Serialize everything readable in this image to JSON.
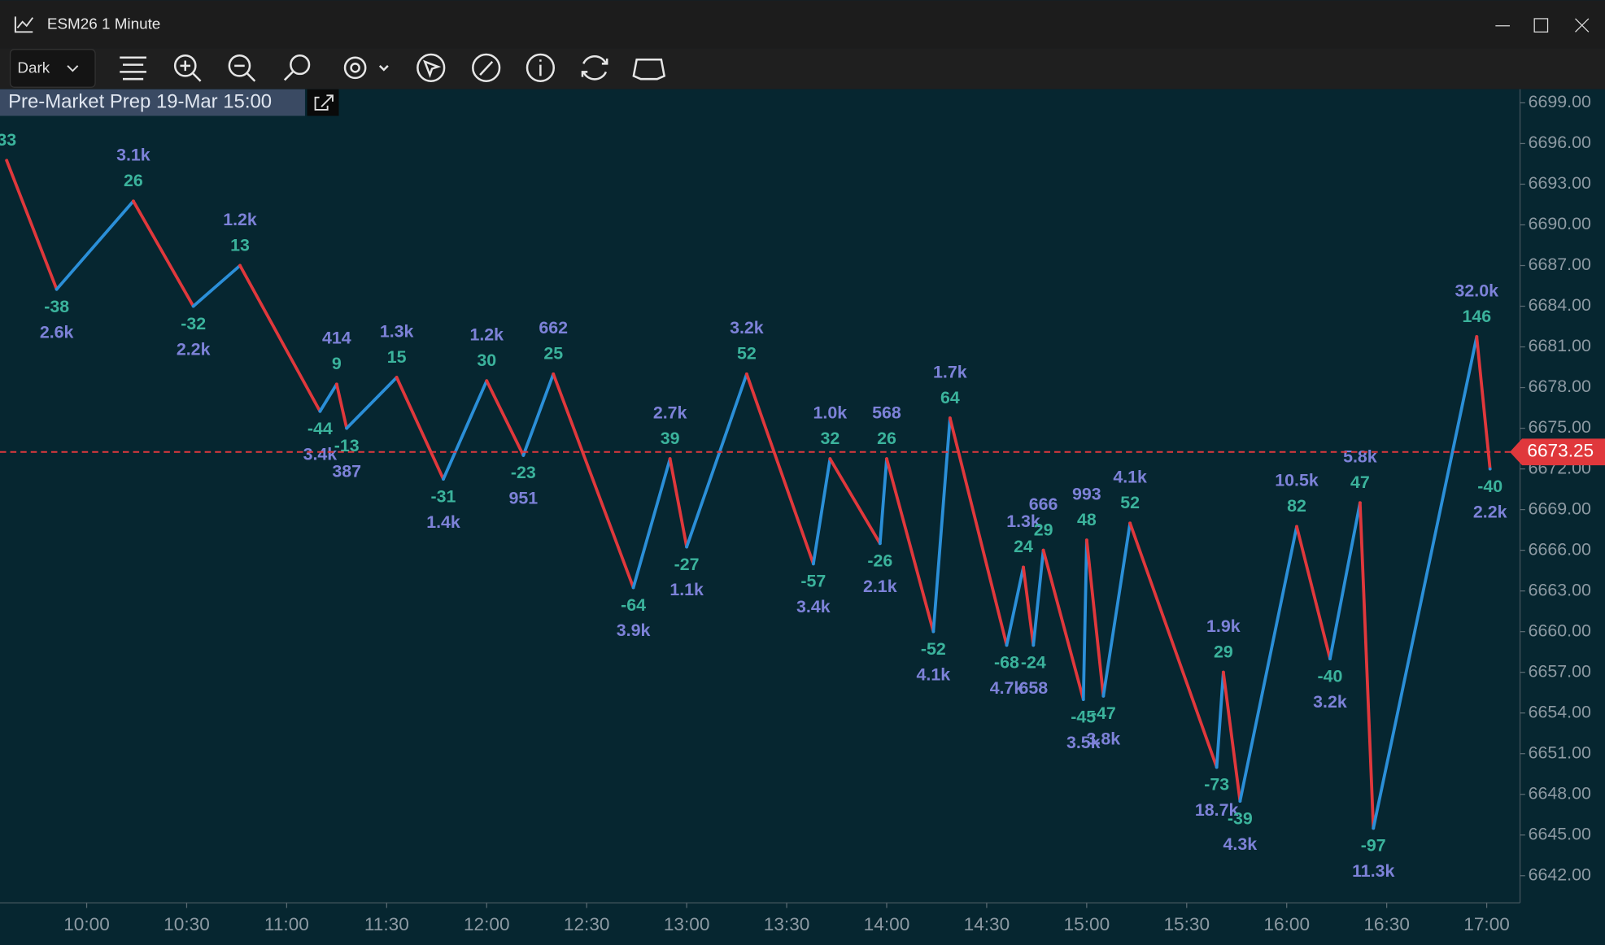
{
  "window": {
    "title": "ESM26 1 Minute",
    "theme": "Dark"
  },
  "chart_data": {
    "type": "line",
    "annotation": "Pre-Market Prep 19-Mar 15:00",
    "x": [
      "09:36",
      "09:51",
      "10:14",
      "10:32",
      "10:46",
      "11:10",
      "11:15",
      "11:18",
      "11:33",
      "11:47",
      "12:00",
      "12:11",
      "12:20",
      "12:44",
      "12:55",
      "13:00",
      "13:18",
      "13:38",
      "13:43",
      "13:58",
      "14:00",
      "14:14",
      "14:19",
      "14:36",
      "14:41",
      "14:44",
      "14:47",
      "14:59",
      "15:00",
      "15:05",
      "15:13",
      "15:39",
      "15:41",
      "15:46",
      "16:03",
      "16:13",
      "16:22",
      "16:26",
      "16:57",
      "17:01"
    ],
    "values": [
      6694.75,
      6685.25,
      6691.75,
      6684,
      6687,
      6676.25,
      6678.25,
      6675,
      6678.75,
      6671.25,
      6678.5,
      6673,
      6679,
      6663.25,
      6672.75,
      6666.25,
      6679,
      6665,
      6672.75,
      6666.5,
      6672.75,
      6660,
      6675.75,
      6659,
      6664.75,
      6659,
      6666,
      6655,
      6666.75,
      6655.25,
      6668,
      6650,
      6657,
      6647.5,
      6667.75,
      6658,
      6669.5,
      6645.5,
      6681.75,
      6672
    ],
    "swing": [
      33,
      -38,
      26,
      -32,
      13,
      -44,
      9,
      -13,
      15,
      -31,
      30,
      -23,
      25,
      -64,
      39,
      -27,
      52,
      -57,
      32,
      -26,
      26,
      -52,
      64,
      -68,
      24,
      -24,
      29,
      -45,
      48,
      -47,
      52,
      -73,
      29,
      -39,
      82,
      -40,
      47,
      -97,
      146,
      -40
    ],
    "volume_labels": [
      null,
      "2.6k",
      "3.1k",
      "2.2k",
      "1.2k",
      "3.4k",
      "414",
      "387",
      "1.3k",
      "1.4k",
      "1.2k",
      "951",
      "662",
      "3.9k",
      "2.7k",
      "1.1k",
      "3.2k",
      "3.4k",
      "1.0k",
      "2.1k",
      "568",
      "4.1k",
      "1.7k",
      "4.7k",
      "1.3k",
      "658",
      "666",
      "3.5k",
      "993",
      "3.8k",
      "4.1k",
      "18.7k",
      "1.9k",
      "4.3k",
      "10.5k",
      "3.2k",
      "5.8k",
      "11.3k",
      "32.0k",
      "2.2k"
    ],
    "up_color": "#2b8fd8",
    "down_color": "#e0383c",
    "last_price": 6673.25,
    "last_price_color": "#e0383c",
    "xlim": [
      "09:34",
      "17:10"
    ],
    "xticks": [
      "10:00",
      "10:30",
      "11:00",
      "11:30",
      "12:00",
      "12:30",
      "13:00",
      "13:30",
      "14:00",
      "14:30",
      "15:00",
      "15:30",
      "16:00",
      "16:30",
      "17:00"
    ],
    "ylim": [
      6640,
      6700
    ],
    "yticks": [
      {
        "value": 6642,
        "label": "6642.00"
      },
      {
        "value": 6645,
        "label": "6645.00"
      },
      {
        "value": 6648,
        "label": "6648.00"
      },
      {
        "value": 6651,
        "label": "6651.00"
      },
      {
        "value": 6654,
        "label": "6654.00"
      },
      {
        "value": 6657,
        "label": "6657.00"
      },
      {
        "value": 6660,
        "label": "6660.00"
      },
      {
        "value": 6663,
        "label": "6663.00"
      },
      {
        "value": 6666,
        "label": "6666.00"
      },
      {
        "value": 6669,
        "label": "6669.00"
      },
      {
        "value": 6672,
        "label": "6672.00"
      },
      {
        "value": 6675,
        "label": "6675.00"
      },
      {
        "value": 6678,
        "label": "6678.00"
      },
      {
        "value": 6681,
        "label": "6681.00"
      },
      {
        "value": 6684,
        "label": "6684.00"
      },
      {
        "value": 6687,
        "label": "6687.00"
      },
      {
        "value": 6690,
        "label": "6690.00"
      },
      {
        "value": 6693,
        "label": "6693.00"
      },
      {
        "value": 6696,
        "label": "6696.00"
      },
      {
        "value": 6699,
        "label": "6699.00"
      }
    ]
  }
}
